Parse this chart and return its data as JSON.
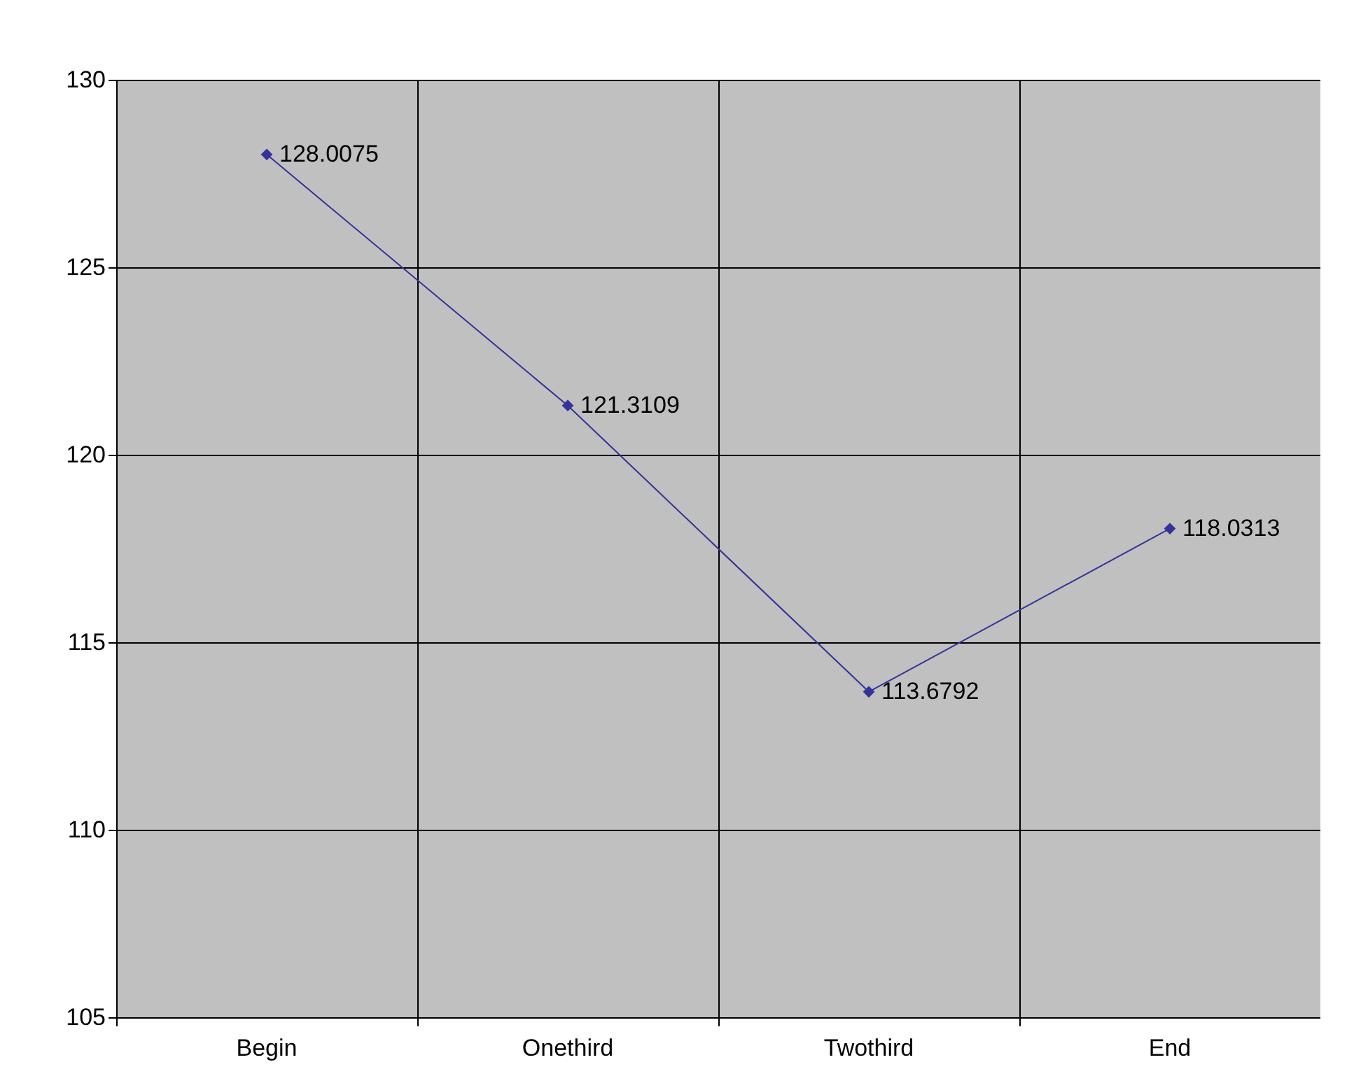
{
  "chart_data": {
    "type": "line",
    "categories": [
      "Begin",
      "Onethird",
      "Twothird",
      "End"
    ],
    "series": [
      {
        "color": "#333399",
        "values": [
          128.0075,
          121.3109,
          113.6792,
          118.0313
        ]
      }
    ],
    "ylim": [
      105,
      130
    ],
    "yticks": [
      105,
      110,
      115,
      120,
      125,
      130
    ],
    "grid": true,
    "marker": "diamond",
    "data_labels": true
  }
}
